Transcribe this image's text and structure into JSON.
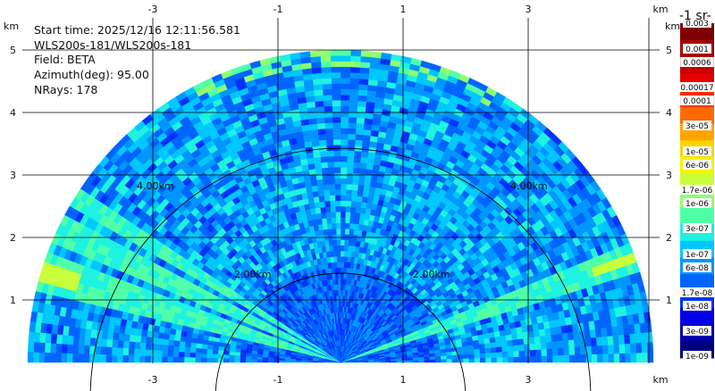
{
  "info": {
    "start_time": "Start time: 2025/12/16 12:11:56.581",
    "instrument": "WLS200s-181/WLS200s-181",
    "field": "Field: BETA",
    "azimuth": "Azimuth(deg): 95.00",
    "nrays": "NRays: 178"
  },
  "colorbar": {
    "unit": "-1 sr-",
    "top_label": "0.003",
    "labels": [
      "0.001",
      "0.0006",
      "0.00017",
      "0.0001",
      "3e-05",
      "1e-05",
      "6e-06",
      "1.7e-06",
      "1e-06",
      "3e-07",
      "1e-07",
      "6e-08",
      "1.7e-08",
      "1e-08",
      "3e-09",
      "1e-09"
    ],
    "colors": [
      "#7f0000",
      "#a50000",
      "#c80000",
      "#e60000",
      "#ff2a00",
      "#ff6a00",
      "#ffa500",
      "#ffd400",
      "#f4f400",
      "#c8ff3a",
      "#8eff6e",
      "#50ffa8",
      "#1ef2e0",
      "#00c8ff",
      "#0096ff",
      "#0064ff",
      "#0032ff",
      "#0000e6",
      "#0000aa",
      "#00007f"
    ]
  },
  "chart_data": {
    "type": "heatmap",
    "title": "",
    "xlabel": "km",
    "ylabel": "km",
    "x_ticks": [
      "-3",
      "-1",
      "1",
      "3"
    ],
    "y_ticks": [
      "1",
      "2",
      "3",
      "4",
      "5"
    ],
    "xlim": [
      -5.1,
      5.1
    ],
    "ylim": [
      0,
      5.4
    ],
    "max_range_km": 5.0,
    "range_rings": [
      {
        "range_km": 2.0,
        "labels": [
          "2.00km",
          "2.00km"
        ]
      },
      {
        "range_km": 4.0,
        "labels": [
          "4.00km",
          "4.00km"
        ]
      }
    ],
    "grid": true
  }
}
